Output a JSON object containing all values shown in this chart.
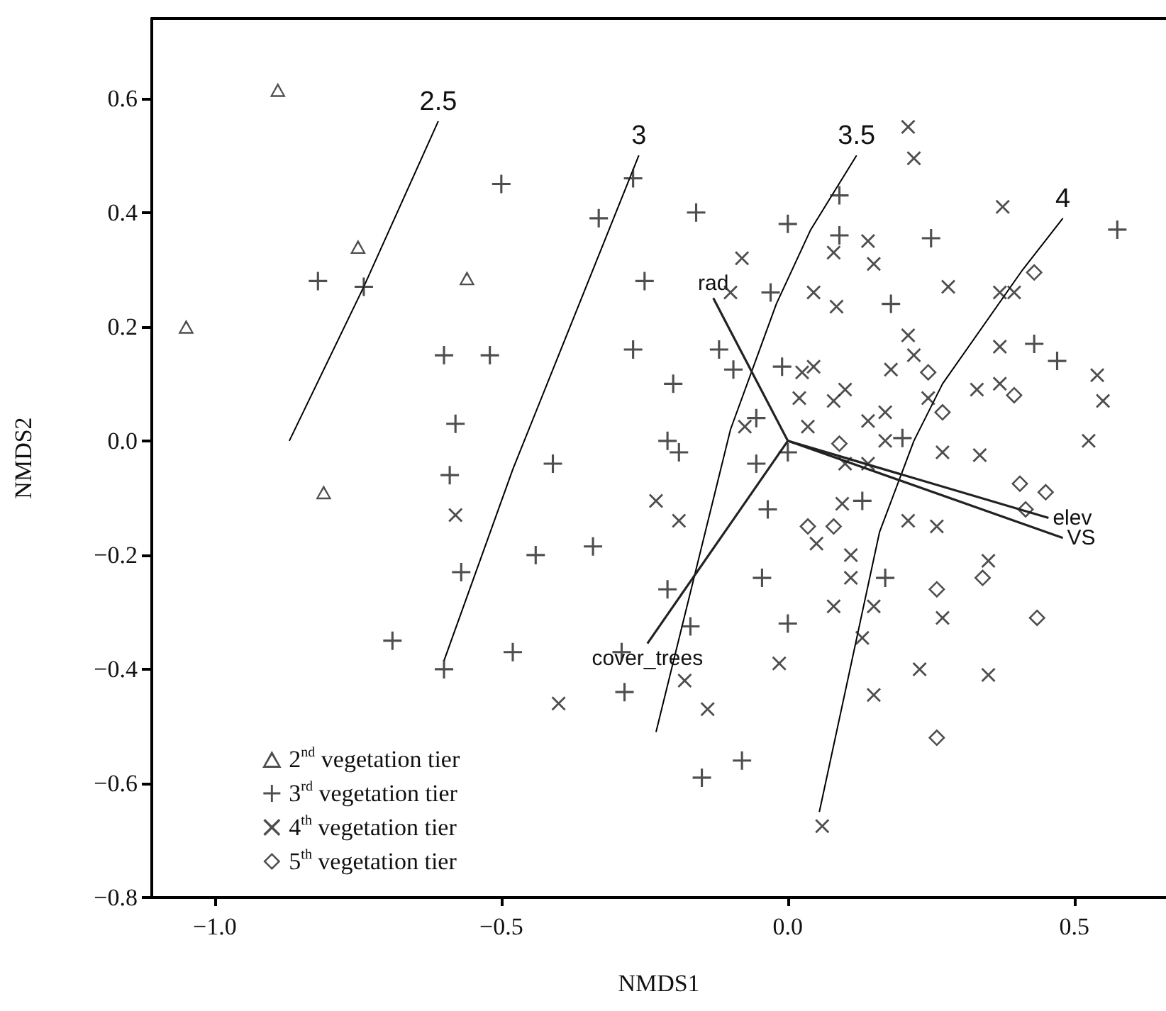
{
  "chart_data": {
    "type": "scatter",
    "xlabel": "NMDS1",
    "ylabel": "NMDS2",
    "xlim": [
      -1.11,
      0.66
    ],
    "ylim": [
      -0.8,
      0.74
    ],
    "xticks": [
      {
        "value": -1,
        "label": "−1.0"
      },
      {
        "value": -0.5,
        "label": "−0.5"
      },
      {
        "value": 0,
        "label": "0.0"
      },
      {
        "value": 0.5,
        "label": "0.5"
      }
    ],
    "yticks": [
      {
        "value": -0.8,
        "label": "−0.8"
      },
      {
        "value": -0.6,
        "label": "−0.6"
      },
      {
        "value": -0.4,
        "label": "−0.4"
      },
      {
        "value": -0.2,
        "label": "−0.2"
      },
      {
        "value": 0,
        "label": "0.0"
      },
      {
        "value": 0.2,
        "label": "0.2"
      },
      {
        "value": 0.4,
        "label": "0.4"
      },
      {
        "value": 0.6,
        "label": "0.6"
      }
    ],
    "legend": "bottom left",
    "series": [
      {
        "name": "2$^{nd}$ vegetation tier",
        "color": "#222222",
        "marker": "triangle",
        "x": [
          -0.89,
          -0.75,
          -0.56,
          -1.05,
          -0.81
        ],
        "values": [
          0.615,
          0.34,
          0.285,
          0.2,
          -0.09
        ]
      },
      {
        "name": "3$^{rd}$ vegetation tier",
        "color": "#222222",
        "marker": "plus",
        "x": [
          -0.5,
          -0.82,
          -0.74,
          -0.6,
          -0.52,
          -0.58,
          -0.41,
          -0.59,
          -0.57,
          -0.44,
          -0.34,
          -0.69,
          -0.6,
          -0.48,
          -0.27,
          -0.33,
          -0.16,
          0.0,
          0.09,
          0.09,
          0.25,
          -0.25,
          -0.03,
          0.18,
          -0.27,
          -0.12,
          -0.095,
          -0.01,
          -0.2,
          -0.055,
          0.2,
          -0.21,
          -0.19,
          0.0,
          -0.055,
          -0.035,
          0.13,
          0.17,
          -0.045,
          -0.21,
          -0.17,
          0.0,
          -0.29,
          -0.285,
          -0.08,
          -0.15,
          0.575,
          0.43,
          0.47
        ],
        "values": [
          0.45,
          0.28,
          0.27,
          0.15,
          0.15,
          0.03,
          -0.04,
          -0.06,
          -0.23,
          -0.2,
          -0.185,
          -0.35,
          -0.4,
          -0.37,
          0.46,
          0.39,
          0.4,
          0.38,
          0.43,
          0.36,
          0.355,
          0.28,
          0.26,
          0.24,
          0.16,
          0.16,
          0.125,
          0.13,
          0.1,
          0.04,
          0.005,
          0.0,
          -0.02,
          -0.02,
          -0.04,
          -0.12,
          -0.105,
          -0.24,
          -0.24,
          -0.26,
          -0.325,
          -0.32,
          -0.37,
          -0.44,
          -0.56,
          -0.59,
          0.37,
          0.17,
          0.14
        ]
      },
      {
        "name": "4$^{th}$ vegetation tier",
        "color": "#222222",
        "marker": "cross",
        "x": [
          -0.58,
          -0.4,
          0.21,
          0.22,
          0.08,
          0.14,
          0.15,
          0.375,
          -0.08,
          -0.1,
          0.045,
          0.085,
          0.28,
          0.37,
          0.395,
          0.025,
          0.045,
          0.21,
          0.22,
          0.18,
          0.37,
          0.37,
          0.33,
          0.245,
          0.02,
          0.08,
          0.1,
          -0.075,
          0.035,
          0.14,
          0.17,
          0.17,
          0.27,
          0.335,
          0.1,
          0.14,
          -0.23,
          -0.19,
          0.05,
          0.095,
          0.21,
          0.26,
          0.11,
          0.11,
          0.35,
          0.08,
          0.15,
          0.27,
          0.13,
          -0.18,
          -0.14,
          -0.015,
          0.23,
          0.35,
          0.15,
          0.06,
          0.54,
          0.55,
          0.525
        ],
        "values": [
          -0.13,
          -0.46,
          0.55,
          0.495,
          0.33,
          0.35,
          0.31,
          0.41,
          0.32,
          0.26,
          0.26,
          0.235,
          0.27,
          0.26,
          0.26,
          0.12,
          0.13,
          0.185,
          0.15,
          0.125,
          0.165,
          0.1,
          0.09,
          0.075,
          0.075,
          0.07,
          0.09,
          0.025,
          0.025,
          0.035,
          0.05,
          0.0,
          -0.02,
          -0.025,
          -0.04,
          -0.04,
          -0.105,
          -0.14,
          -0.18,
          -0.11,
          -0.14,
          -0.15,
          -0.2,
          -0.24,
          -0.21,
          -0.29,
          -0.29,
          -0.31,
          -0.345,
          -0.42,
          -0.47,
          -0.39,
          -0.4,
          -0.41,
          -0.445,
          -0.675,
          0.115,
          0.07,
          0.0
        ]
      },
      {
        "name": "5$^{th}$ vegetation tier",
        "color": "#222222",
        "marker": "diamond",
        "x": [
          0.245,
          0.395,
          0.27,
          0.09,
          0.035,
          0.08,
          0.26,
          0.34,
          0.26,
          0.43,
          0.405,
          0.45,
          0.415,
          0.435
        ],
        "values": [
          0.12,
          0.08,
          0.05,
          -0.005,
          -0.15,
          -0.15,
          -0.26,
          -0.24,
          -0.52,
          0.295,
          -0.075,
          -0.09,
          -0.12,
          -0.31
        ]
      },
      {
        "name": "2.5",
        "type": "line",
        "color": "#000000",
        "x": [
          -0.87,
          -0.74,
          -0.61
        ],
        "values": [
          0.0,
          0.27,
          0.56
        ]
      },
      {
        "name": "3",
        "type": "line",
        "color": "#000000",
        "x": [
          -0.6,
          -0.48,
          -0.26
        ],
        "values": [
          -0.385,
          -0.05,
          0.5
        ]
      },
      {
        "name": "3.5",
        "type": "line",
        "color": "#000000",
        "x": [
          -0.23,
          -0.1,
          -0.02,
          0.04,
          0.12
        ],
        "values": [
          -0.51,
          0.02,
          0.24,
          0.37,
          0.5
        ]
      },
      {
        "name": "4",
        "type": "line",
        "color": "#000000",
        "x": [
          0.055,
          0.16,
          0.22,
          0.27,
          0.41,
          0.48
        ],
        "values": [
          -0.65,
          -0.16,
          0.0,
          0.1,
          0.3,
          0.39
        ]
      },
      {
        "name": "rad",
        "type": "line",
        "color": "#222222",
        "x": [
          0,
          -0.13
        ],
        "values": [
          0,
          0.25
        ]
      },
      {
        "name": "cover_trees",
        "type": "line",
        "color": "#222222",
        "x": [
          0,
          -0.245
        ],
        "values": [
          0,
          -0.355
        ]
      },
      {
        "name": "elev",
        "type": "line",
        "color": "#222222",
        "x": [
          0,
          0.455
        ],
        "values": [
          0,
          -0.135
        ]
      },
      {
        "name": "VS",
        "type": "line",
        "color": "#222222",
        "x": [
          0,
          0.48
        ],
        "values": [
          0,
          -0.17
        ]
      }
    ]
  }
}
